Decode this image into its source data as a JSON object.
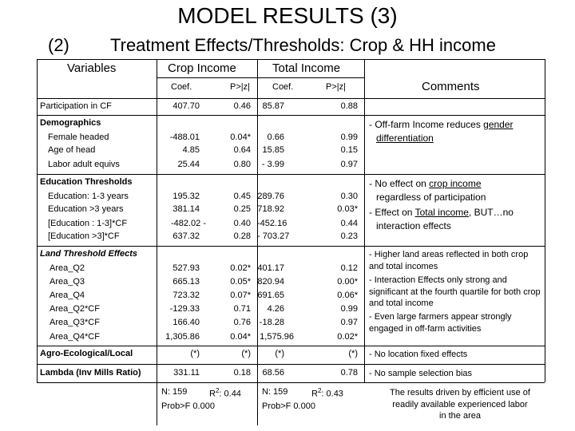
{
  "slide": {
    "title": "MODEL RESULTS (3)",
    "subtitle_number": "(2)",
    "subtitle": "Treatment Effects/Thresholds: Crop & HH income"
  },
  "table": {
    "headers": {
      "variables": "Variables",
      "crop_income": "Crop Income",
      "total_income": "Total Income",
      "comments": "Comments",
      "coef1": "Coef.",
      "pz1": "P>|z|",
      "coef2": "Coef.",
      "pz2": "P>|z|"
    },
    "participation": {
      "label": "Participation in CF",
      "crop_coef": "407.70",
      "crop_p": "0.46",
      "total_coef": "85.87",
      "total_p": "0.88"
    },
    "demographics": {
      "label": "Demographics",
      "rows": [
        {
          "label": "Female headed",
          "crop_coef": "-488.01",
          "crop_p": "0.04*",
          "total_coef": "0.66",
          "total_p": "0.99"
        },
        {
          "label": "Age of head",
          "crop_coef": "4.85",
          "crop_p": "0.64",
          "total_coef": "15.85",
          "total_p": "0.15"
        },
        {
          "label": "Labor adult equivs",
          "crop_coef": "25.44",
          "crop_p": "0.80",
          "total_coef": "- 3.99",
          "total_p": "0.97"
        }
      ],
      "comment_prefix": "- Off-farm Income reduces ",
      "comment_underlined_1": "gender",
      "comment_underlined_2": "differentiation"
    },
    "education": {
      "label": "Education Thresholds",
      "rows": [
        {
          "label": "Education: 1-3 years",
          "crop_coef": "195.32",
          "crop_p": "0.45",
          "total_coef": "289.76",
          "total_p": "0.30"
        },
        {
          "label": "Education  >3 years",
          "crop_coef": "381.14",
          "crop_p": "0.25",
          "total_coef": "718.92",
          "total_p": "0.03*"
        },
        {
          "label": "[Education : 1-3]*CF",
          "crop_coef": "-482.02 -",
          "crop_p": "0.40",
          "total_coef": "-452.16",
          "total_p": "0.44"
        },
        {
          "label": "[Education >3]*CF",
          "crop_coef": "637.32",
          "crop_p": "0.28",
          "total_coef": "- 703.27",
          "total_p": "0.23"
        }
      ],
      "comment1_prefix": "- No effect on ",
      "comment1_underlined": "crop income",
      "comment1_suffix": "regardless of participation",
      "comment2_prefix": "- Effect on ",
      "comment2_underlined": "Total income",
      "comment2_mid": ", BUT…no",
      "comment2_suffix": "interaction effects"
    },
    "land": {
      "label": "Land Threshold Effects",
      "rows": [
        {
          "label": "Area_Q2",
          "crop_coef": "527.93",
          "crop_p": "0.02*",
          "total_coef": "401.17",
          "total_p": "0.12"
        },
        {
          "label": "Area_Q3",
          "crop_coef": "665.13",
          "crop_p": "0.05*",
          "total_coef": "820.94",
          "total_p": "0.00*"
        },
        {
          "label": "Area_Q4",
          "crop_coef": "723.32",
          "crop_p": "0.07*",
          "total_coef": "691.65",
          "total_p": "0.06*"
        },
        {
          "label": "Area_Q2*CF",
          "crop_coef": "-129.33",
          "crop_p": "0.71",
          "total_coef": "4.26",
          "total_p": "0.99"
        },
        {
          "label": "Area_Q3*CF",
          "crop_coef": "166.40",
          "crop_p": "0.76",
          "total_coef": "-18.28",
          "total_p": "0.97"
        },
        {
          "label": "Area_Q4*CF",
          "crop_coef": "1,305.86",
          "crop_p": "0.04*",
          "total_coef": "1,575.96",
          "total_p": "0.02*"
        }
      ],
      "comment1": "- Higher land areas reflected in both crop  and total incomes",
      "comment2": "- Interaction Effects only strong and significant at the fourth quartile for both crop and total income",
      "comment3": "- Even large farmers appear strongly engaged in off-farm activities"
    },
    "agro": {
      "label": "Agro-Ecological/Local",
      "crop_coef": "(*)",
      "crop_p": "(*)",
      "total_coef": "(*)",
      "total_p": "(*)",
      "comment": "- No location fixed effects"
    },
    "lambda": {
      "label": "Lambda (Inv Mills Ratio)",
      "crop_coef": "331.11",
      "crop_p": "0.18",
      "total_coef": "68.56",
      "total_p": "0.78",
      "comment": "- No sample selection bias"
    },
    "footer": {
      "crop_n": "N:  159",
      "crop_r2_prefix": "R",
      "crop_r2_value": ": 0.44",
      "crop_prob": "Prob>F  0.000",
      "total_n": "N:   159",
      "total_r2_prefix": "R",
      "total_r2_value": ": 0.43",
      "total_prob": "Prob>F  0.000",
      "r2_sup": "2",
      "comment": "The results driven by efficient use of readily available experienced labor in the area"
    }
  }
}
